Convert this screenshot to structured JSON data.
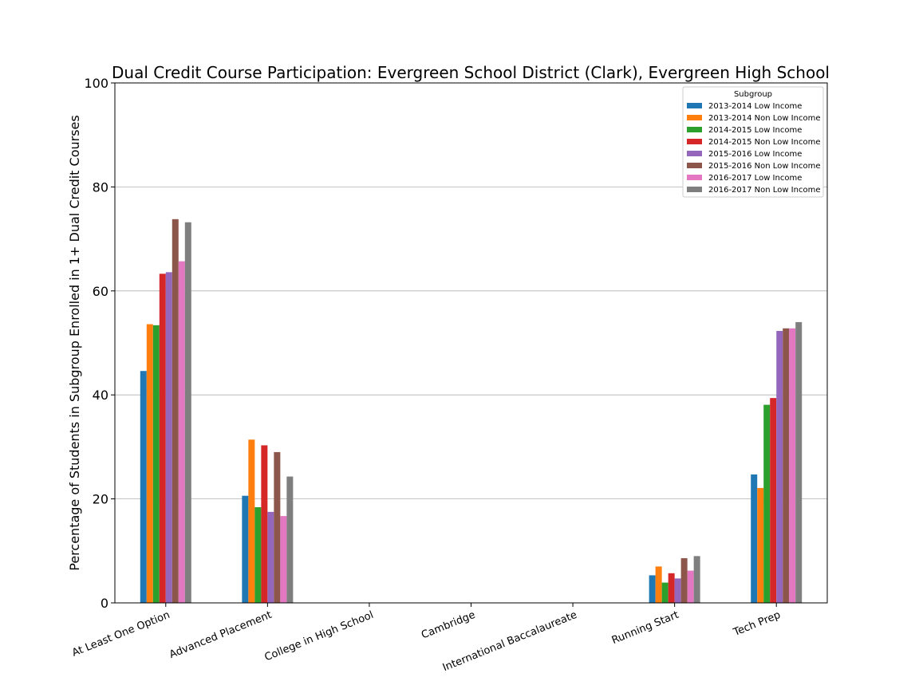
{
  "chart_data": {
    "type": "bar",
    "title": "Dual Credit Course Participation: Evergreen School District (Clark), Evergreen High School",
    "ylabel": "Percentage of Students in Subgroup Enrolled in 1+ Dual Credit Courses",
    "xlabel": "",
    "ylim": [
      0,
      100
    ],
    "yticks": [
      0,
      20,
      40,
      60,
      80,
      100
    ],
    "grid": "y",
    "legend": {
      "title": "Subgroup",
      "placement": "top-right"
    },
    "categories": [
      "At Least One Option",
      "Advanced Placement",
      "College in High School",
      "Cambridge",
      "International Baccalaureate",
      "Running Start",
      "Tech Prep"
    ],
    "series": [
      {
        "name": "2013-2014 Low Income",
        "color": "#1f77b4",
        "values": [
          44.6,
          20.6,
          0,
          0,
          0,
          5.3,
          24.7
        ]
      },
      {
        "name": "2013-2014 Non Low Income",
        "color": "#ff7f0e",
        "values": [
          53.6,
          31.4,
          0,
          0,
          0,
          7.0,
          22.1
        ]
      },
      {
        "name": "2014-2015 Low Income",
        "color": "#2ca02c",
        "values": [
          53.4,
          18.4,
          0,
          0,
          0,
          3.9,
          38.1
        ]
      },
      {
        "name": "2014-2015 Non Low Income",
        "color": "#d62728",
        "values": [
          63.3,
          30.3,
          0,
          0,
          0,
          5.7,
          39.4
        ]
      },
      {
        "name": "2015-2016 Low Income",
        "color": "#9467bd",
        "values": [
          63.6,
          17.5,
          0,
          0,
          0,
          4.7,
          52.3
        ]
      },
      {
        "name": "2015-2016 Non Low Income",
        "color": "#8c564b",
        "values": [
          73.8,
          29.0,
          0,
          0,
          0,
          8.6,
          52.8
        ]
      },
      {
        "name": "2016-2017 Low Income",
        "color": "#e377c2",
        "values": [
          65.7,
          16.7,
          0,
          0,
          0,
          6.2,
          52.8
        ]
      },
      {
        "name": "2016-2017 Non Low Income",
        "color": "#7f7f7f",
        "values": [
          73.2,
          24.3,
          0,
          0,
          0,
          9.0,
          54.0
        ]
      }
    ]
  }
}
